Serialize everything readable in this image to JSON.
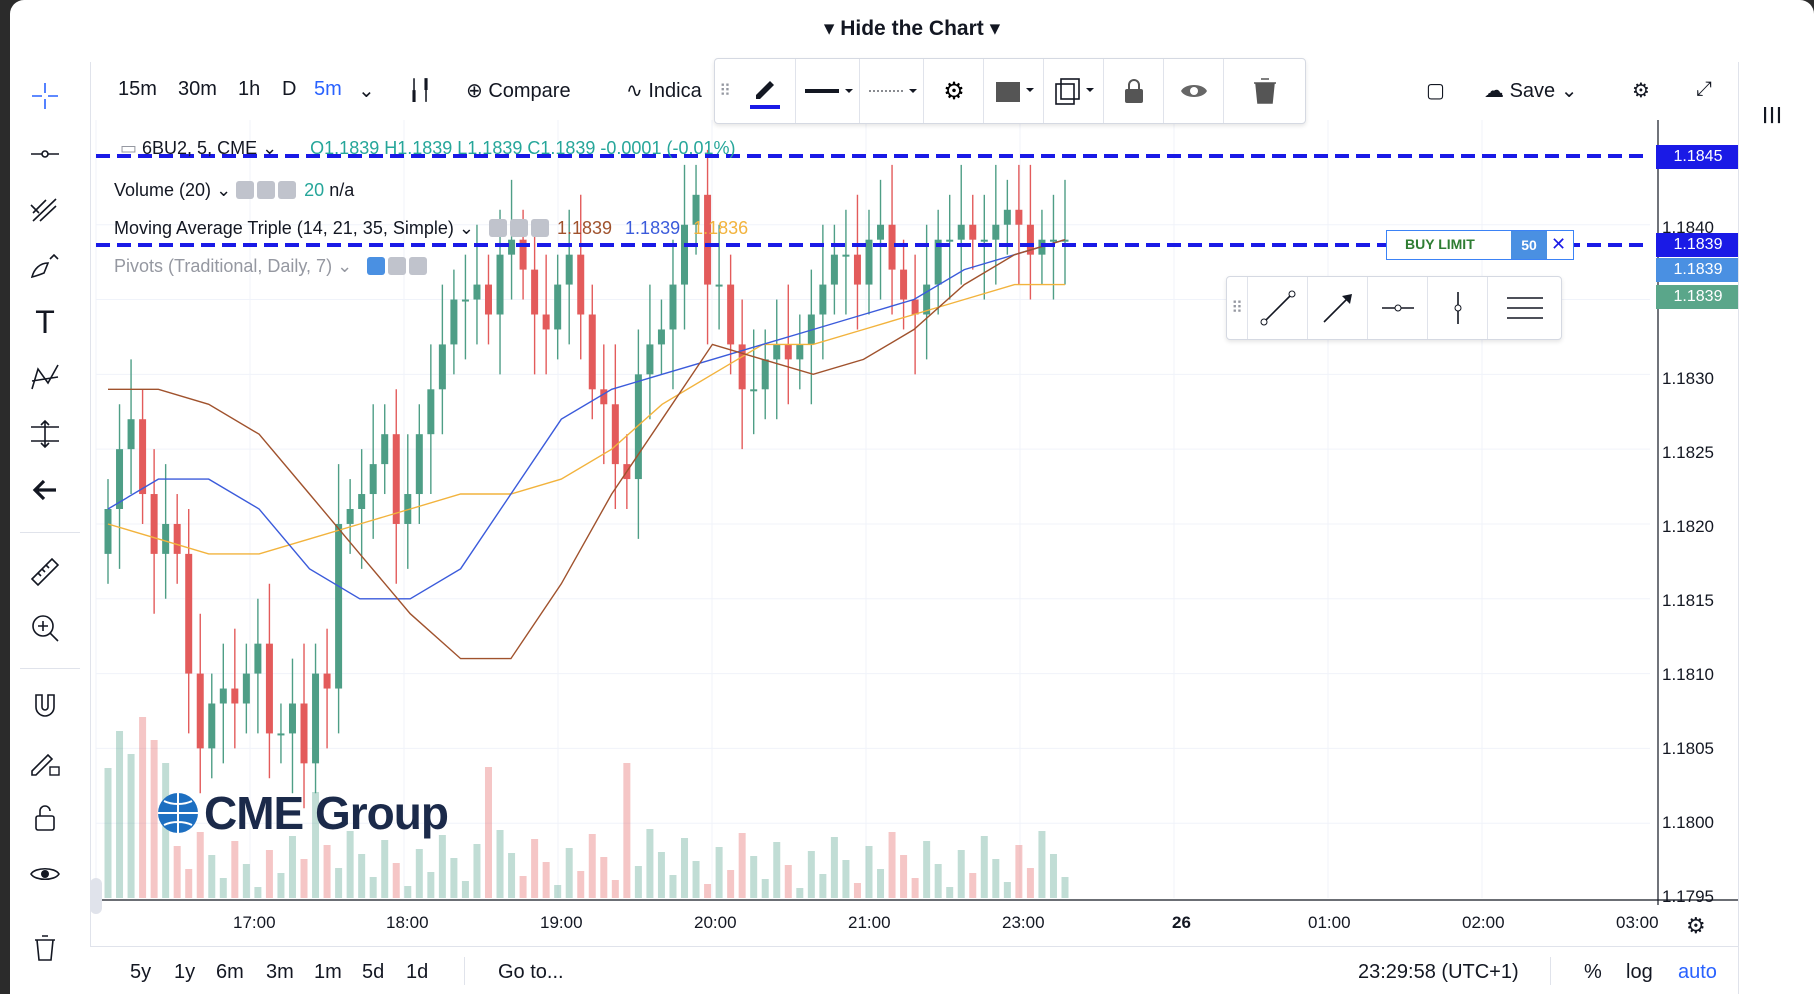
{
  "header": {
    "hide_chart": "Hide the Chart"
  },
  "intervals": [
    "15m",
    "30m",
    "1h",
    "D"
  ],
  "active_interval": "5m",
  "toolbar": {
    "compare": "Compare",
    "indicators": "Indica",
    "save": "Save"
  },
  "symbol": {
    "name": "6BU2, 5, CME",
    "ohlc": "O1.1839  H1.1839  L1.1839  C1.1839  -0.0001 (-0.01%)"
  },
  "legend": {
    "volume": {
      "label": "Volume (20)",
      "value": "20",
      "extra": "n/a"
    },
    "ma": {
      "label": "Moving Average Triple (14, 21, 35, Simple)",
      "v1": "1.1839",
      "v2": "1.1839",
      "v3": "1.1836"
    },
    "pivots": {
      "label": "Pivots (Traditional, Daily, 7)"
    }
  },
  "price_labels": [
    {
      "text": "1.1845",
      "color": "#1a1ae6"
    },
    {
      "text": "1.1839",
      "color": "#1a1ae6"
    },
    {
      "text": "1.1839",
      "color": "#4a90e2"
    },
    {
      "text": "1.1839",
      "color": "#5aa68a"
    }
  ],
  "y_ticks": [
    "1.1840",
    "1.1830",
    "1.1825",
    "1.1820",
    "1.1815",
    "1.1810",
    "1.1805",
    "1.1800",
    "1.1795"
  ],
  "x_ticks": [
    "17:00",
    "18:00",
    "19:00",
    "20:00",
    "21:00",
    "23:00",
    "26",
    "01:00",
    "02:00",
    "03:00"
  ],
  "order": {
    "label": "BUY LIMIT",
    "qty": "50"
  },
  "logo": {
    "text": "CME Group"
  },
  "bottom": {
    "ranges": [
      "5y",
      "1y",
      "6m",
      "3m",
      "1m",
      "5d",
      "1d"
    ],
    "goto": "Go to...",
    "time": "23:29:58 (UTC+1)",
    "percent": "%",
    "log": "log",
    "auto": "auto"
  },
  "chart_data": {
    "type": "candlestick",
    "symbol": "6BU2",
    "interval": "5",
    "ylim": [
      1.1795,
      1.1847
    ],
    "x_labels": [
      "17:00",
      "18:00",
      "19:00",
      "20:00",
      "21:00",
      "23:00"
    ],
    "candles_close": [
      1.1821,
      1.1825,
      1.1827,
      1.1822,
      1.1818,
      1.182,
      1.1818,
      1.181,
      1.1805,
      1.1808,
      1.1809,
      1.1808,
      1.181,
      1.1812,
      1.1806,
      1.1806,
      1.1808,
      1.1804,
      1.181,
      1.1809,
      1.182,
      1.1821,
      1.1822,
      1.1824,
      1.1826,
      1.182,
      1.1822,
      1.1826,
      1.1829,
      1.1832,
      1.1835,
      1.1835,
      1.1836,
      1.1834,
      1.1838,
      1.1839,
      1.1837,
      1.1834,
      1.1833,
      1.1836,
      1.1838,
      1.1834,
      1.1829,
      1.1828,
      1.1824,
      1.1823,
      1.183,
      1.1832,
      1.1833,
      1.1836,
      1.184,
      1.1842,
      1.1836,
      1.1836,
      1.1832,
      1.1829,
      1.1829,
      1.1831,
      1.1832,
      1.1831,
      1.1832,
      1.1834,
      1.1836,
      1.1838,
      1.1838,
      1.1836,
      1.1839,
      1.184,
      1.1837,
      1.1835,
      1.1834,
      1.1836,
      1.1839,
      1.1839,
      1.184,
      1.1839,
      1.1839,
      1.184,
      1.1841,
      1.184,
      1.1838,
      1.1839,
      1.1839,
      1.1839
    ],
    "ma_fast": [
      1.1829,
      1.1829,
      1.1828,
      1.1826,
      1.1822,
      1.1818,
      1.1814,
      1.1811,
      1.1811,
      1.1816,
      1.1822,
      1.1827,
      1.1832,
      1.1831,
      1.183,
      1.1831,
      1.1833,
      1.1836,
      1.1838,
      1.1839
    ],
    "ma_mid": [
      1.1821,
      1.1823,
      1.1823,
      1.1821,
      1.1817,
      1.1815,
      1.1815,
      1.1817,
      1.1822,
      1.1827,
      1.1829,
      1.183,
      1.1831,
      1.1832,
      1.1833,
      1.1834,
      1.1835,
      1.1837,
      1.1838,
      1.1839
    ],
    "ma_slow": [
      1.182,
      1.1819,
      1.1818,
      1.1818,
      1.1819,
      1.182,
      1.1821,
      1.1822,
      1.1822,
      1.1823,
      1.1825,
      1.1828,
      1.183,
      1.1832,
      1.1832,
      1.1833,
      1.1834,
      1.1835,
      1.1836,
      1.1836
    ]
  }
}
